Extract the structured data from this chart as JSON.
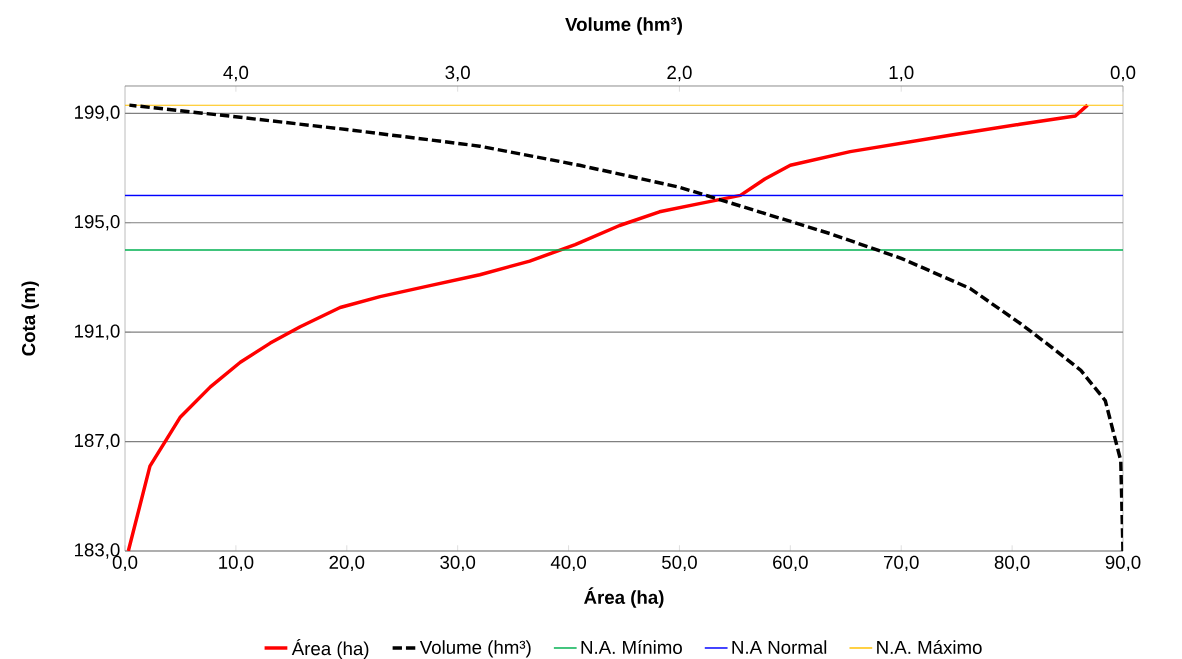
{
  "chart_data": {
    "type": "line",
    "xlabel": "Área (ha)",
    "ylabel": "Cota (m)",
    "x2label": "Volume (hm³)",
    "xlim": [
      0,
      90
    ],
    "xticks": [
      {
        "value": 0,
        "label": "0,0"
      },
      {
        "value": 10,
        "label": "10,0"
      },
      {
        "value": 20,
        "label": "20,0"
      },
      {
        "value": 30,
        "label": "30,0"
      },
      {
        "value": 40,
        "label": "40,0"
      },
      {
        "value": 50,
        "label": "50,0"
      },
      {
        "value": 60,
        "label": "60,0"
      },
      {
        "value": 70,
        "label": "70,0"
      },
      {
        "value": 80,
        "label": "80,0"
      },
      {
        "value": 90,
        "label": "90,0"
      }
    ],
    "x2lim": [
      4.5,
      0
    ],
    "x2ticks": [
      {
        "value": 4,
        "label": "4,0"
      },
      {
        "value": 3,
        "label": "3,0"
      },
      {
        "value": 2,
        "label": "2,0"
      },
      {
        "value": 1,
        "label": "1,0"
      },
      {
        "value": 0,
        "label": "0,0"
      }
    ],
    "ylim": [
      183,
      200
    ],
    "yticks": [
      {
        "value": 183,
        "label": "183,0"
      },
      {
        "value": 187,
        "label": "187,0"
      },
      {
        "value": 191,
        "label": "191,0"
      },
      {
        "value": 195,
        "label": "195,0"
      },
      {
        "value": 199,
        "label": "199,0"
      }
    ],
    "grid": "y",
    "legend": "bottom",
    "marker": "none",
    "series": [
      {
        "name": "Área (ha)",
        "color": "#ff0000",
        "line_style": "solid",
        "x": [
          0.3,
          2.25,
          5.0,
          7.7,
          10.4,
          13.1,
          15.8,
          19.4,
          23.0,
          27.5,
          32.0,
          36.5,
          40.6,
          44.6,
          48.2,
          51.8,
          55.5,
          57.7,
          60.0,
          65.4,
          74.4,
          80.7,
          85.7,
          86.8
        ],
        "values": [
          183,
          186.1,
          187.9,
          189.0,
          189.9,
          190.6,
          191.2,
          191.9,
          192.3,
          192.7,
          193.1,
          193.6,
          194.2,
          194.9,
          195.4,
          195.7,
          196.0,
          196.6,
          197.1,
          197.6,
          198.2,
          198.6,
          198.9,
          199.3
        ]
      },
      {
        "name": "Volume (hm³)",
        "color": "#000000",
        "line_style": "dashed",
        "axis": "x2",
        "x": [
          0,
          0.01,
          0.08,
          0.19,
          0.33,
          0.46,
          0.69,
          1.0,
          1.32,
          1.64,
          2.0,
          2.45,
          2.9,
          3.49,
          4.03,
          4.48
        ],
        "values": [
          183,
          186.3,
          188.5,
          189.6,
          190.5,
          191.3,
          192.6,
          193.7,
          194.6,
          195.4,
          196.3,
          197.1,
          197.8,
          198.4,
          198.9,
          199.3
        ]
      }
    ],
    "ref_lines": [
      {
        "axis": "y",
        "value": 194,
        "label": "N.A. Mínimo",
        "color": "#00b050"
      },
      {
        "axis": "y",
        "value": 196,
        "label": "N.A Normal",
        "color": "#0000ff"
      },
      {
        "axis": "y",
        "value": 199.3,
        "label": "N.A. Máximo",
        "color": "#ffc000"
      }
    ]
  }
}
